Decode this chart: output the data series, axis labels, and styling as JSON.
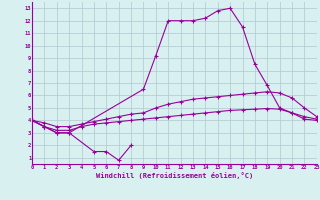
{
  "xlabel": "Windchill (Refroidissement éolien,°C)",
  "background_color": "#d8f0f0",
  "line_color": "#990099",
  "grid_color": "#b0c8d0",
  "xlim": [
    0,
    23
  ],
  "ylim": [
    0.5,
    13.5
  ],
  "xticks": [
    0,
    1,
    2,
    3,
    4,
    5,
    6,
    7,
    8,
    9,
    10,
    11,
    12,
    13,
    14,
    15,
    16,
    17,
    18,
    19,
    20,
    21,
    22,
    23
  ],
  "yticks": [
    1,
    2,
    3,
    4,
    5,
    6,
    7,
    8,
    9,
    10,
    11,
    12,
    13
  ],
  "series": [
    {
      "x": [
        0,
        1,
        2,
        3,
        5,
        6,
        7,
        8
      ],
      "y": [
        4.0,
        3.5,
        3.0,
        3.0,
        1.5,
        1.5,
        0.8,
        2.0
      ]
    },
    {
      "x": [
        0,
        1,
        2,
        3,
        4,
        5,
        6,
        7,
        8,
        9,
        10,
        11,
        12,
        13,
        14,
        15,
        16,
        17,
        18,
        19,
        20,
        21,
        22,
        23
      ],
      "y": [
        4.0,
        3.5,
        3.2,
        3.2,
        3.5,
        3.7,
        3.8,
        3.9,
        4.0,
        4.1,
        4.2,
        4.3,
        4.4,
        4.5,
        4.6,
        4.7,
        4.8,
        4.85,
        4.9,
        4.95,
        4.9,
        4.6,
        4.3,
        4.1
      ]
    },
    {
      "x": [
        0,
        1,
        2,
        3,
        4,
        5,
        6,
        7,
        8,
        9,
        10,
        11,
        12,
        13,
        14,
        15,
        16,
        17,
        18,
        19,
        20,
        21,
        22,
        23
      ],
      "y": [
        4.0,
        3.8,
        3.5,
        3.5,
        3.7,
        3.9,
        4.1,
        4.3,
        4.5,
        4.6,
        5.0,
        5.3,
        5.5,
        5.7,
        5.8,
        5.9,
        6.0,
        6.1,
        6.2,
        6.3,
        6.2,
        5.8,
        5.0,
        4.3
      ]
    },
    {
      "x": [
        0,
        1,
        2,
        3,
        9,
        10,
        11,
        12,
        13,
        14,
        15,
        16,
        17,
        18,
        19,
        20,
        21,
        22,
        23
      ],
      "y": [
        4.0,
        3.5,
        3.0,
        3.0,
        6.5,
        9.2,
        12.0,
        12.0,
        12.0,
        12.2,
        12.8,
        13.0,
        11.5,
        8.5,
        6.8,
        5.0,
        4.6,
        4.1,
        4.0
      ]
    }
  ]
}
